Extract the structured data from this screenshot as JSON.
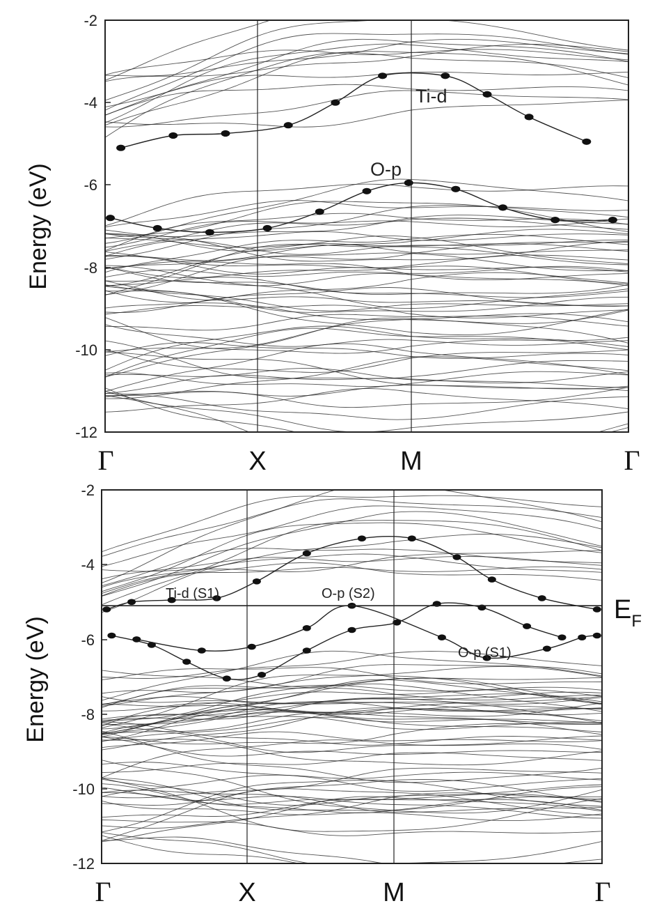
{
  "colors": {
    "ink": "#222222",
    "background": "#ffffff"
  },
  "chart_data": [
    {
      "type": "line",
      "title": "",
      "xlabel": "",
      "ylabel": "Energy (eV)",
      "ylim": [
        -12,
        -2
      ],
      "yticks": [
        -2,
        -4,
        -6,
        -8,
        -10,
        -12
      ],
      "k_points": [
        "Γ",
        "X",
        "M",
        "Γ"
      ],
      "grid": false,
      "annotations": [
        "Ti-d",
        "O-p"
      ],
      "highlighted_bands": [
        {
          "name": "Ti-d",
          "x": [
            0.03,
            0.13,
            0.23,
            0.35,
            0.44,
            0.53,
            0.65,
            0.73,
            0.81,
            0.92
          ],
          "y": [
            -5.1,
            -4.8,
            -4.75,
            -4.55,
            -4.0,
            -3.35,
            -3.35,
            -3.8,
            -4.35,
            -4.95
          ]
        },
        {
          "name": "O-p",
          "x": [
            0.01,
            0.1,
            0.2,
            0.31,
            0.41,
            0.5,
            0.58,
            0.67,
            0.76,
            0.86,
            0.97
          ],
          "y": [
            -6.8,
            -7.05,
            -7.15,
            -7.05,
            -6.65,
            -6.15,
            -5.95,
            -6.1,
            -6.55,
            -6.85,
            -6.85
          ]
        }
      ]
    },
    {
      "type": "line",
      "title": "",
      "xlabel": "",
      "ylabel": "Energy (eV)",
      "ylim": [
        -12,
        -2
      ],
      "yticks": [
        -2,
        -4,
        -6,
        -8,
        -10,
        -12
      ],
      "k_points": [
        "Γ",
        "X",
        "M",
        "Γ"
      ],
      "grid": false,
      "fermi_level": -5.1,
      "fermi_label": "E",
      "fermi_label_sub": "F",
      "annotations": [
        "Ti-d (S1)",
        "O-p (S2)",
        "O-p (S1)"
      ],
      "highlighted_bands": [
        {
          "name": "Ti-d (S1)",
          "x": [
            0.01,
            0.06,
            0.14,
            0.23,
            0.31,
            0.41,
            0.52,
            0.62,
            0.71,
            0.78,
            0.88,
            0.99
          ],
          "y": [
            -5.2,
            -5.0,
            -4.95,
            -4.9,
            -4.45,
            -3.7,
            -3.3,
            -3.3,
            -3.8,
            -4.4,
            -4.9,
            -5.2
          ]
        },
        {
          "name": "O-p (S2)",
          "x": [
            0.02,
            0.1,
            0.17,
            0.25,
            0.32,
            0.41,
            0.5,
            0.59,
            0.67,
            0.76,
            0.85,
            0.92
          ],
          "y": [
            -5.9,
            -6.15,
            -6.6,
            -7.05,
            -6.95,
            -6.3,
            -5.75,
            -5.55,
            -5.05,
            -5.15,
            -5.65,
            -5.95
          ]
        },
        {
          "name": "O-p (S1)",
          "x": [
            0.07,
            0.2,
            0.3,
            0.41,
            0.5,
            0.68,
            0.77,
            0.89,
            0.96,
            0.99
          ],
          "y": [
            -6.0,
            -6.3,
            -6.2,
            -5.7,
            -5.1,
            -5.95,
            -6.5,
            -6.25,
            -5.95,
            -5.9
          ]
        }
      ]
    }
  ]
}
